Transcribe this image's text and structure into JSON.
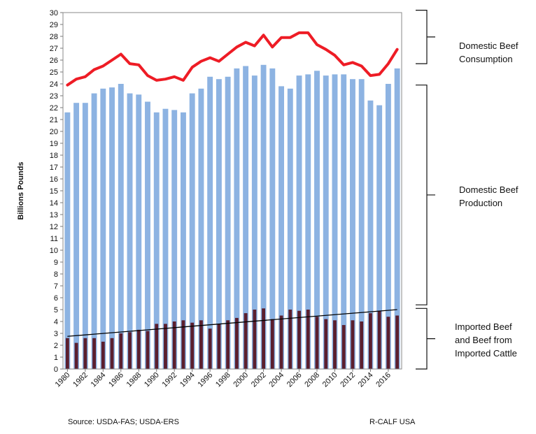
{
  "chart_data": {
    "type": "bar",
    "ylabel": "Billions Pounds",
    "ylim": [
      0,
      30
    ],
    "yticks": [
      0,
      1,
      2,
      3,
      4,
      5,
      6,
      7,
      8,
      9,
      10,
      11,
      12,
      13,
      14,
      15,
      16,
      17,
      18,
      19,
      20,
      21,
      22,
      23,
      24,
      25,
      26,
      27,
      28,
      29,
      30
    ],
    "categories": [
      1980,
      1981,
      1982,
      1983,
      1984,
      1985,
      1986,
      1987,
      1988,
      1989,
      1990,
      1991,
      1992,
      1993,
      1994,
      1995,
      1996,
      1997,
      1998,
      1999,
      2000,
      2001,
      2002,
      2003,
      2004,
      2005,
      2006,
      2007,
      2008,
      2009,
      2010,
      2011,
      2012,
      2013,
      2014,
      2015,
      2016,
      2017
    ],
    "xtick_labels": [
      "1980",
      "1982",
      "1984",
      "1986",
      "1988",
      "1990",
      "1992",
      "1994",
      "1996",
      "1998",
      "2000",
      "2002",
      "2004",
      "2006",
      "2008",
      "2010",
      "2012",
      "2014",
      "2016"
    ],
    "series": [
      {
        "values": [
          21.6,
          22.4,
          22.4,
          23.2,
          23.6,
          23.7,
          24.0,
          23.2,
          23.1,
          22.5,
          21.6,
          21.9,
          21.8,
          21.6,
          23.2,
          23.6,
          24.6,
          24.4,
          24.6,
          25.3,
          25.5,
          24.7,
          25.6,
          25.3,
          23.8,
          23.6,
          24.7,
          24.8,
          25.1,
          24.7,
          24.8,
          24.8,
          24.4,
          24.4,
          22.6,
          22.2,
          24.0,
          25.3
        ]
      },
      {
        "values": [
          2.6,
          2.2,
          2.6,
          2.6,
          2.3,
          2.6,
          3.0,
          3.1,
          3.3,
          3.2,
          3.8,
          3.8,
          4.0,
          4.1,
          3.9,
          4.1,
          3.4,
          3.8,
          4.1,
          4.3,
          4.7,
          5.0,
          5.1,
          4.2,
          4.5,
          5.0,
          4.9,
          5.0,
          4.4,
          4.2,
          4.1,
          3.7,
          4.1,
          4.0,
          4.7,
          4.9,
          4.4,
          4.5
        ]
      },
      {
        "type": "line",
        "values": [
          23.9,
          24.4,
          24.6,
          25.2,
          25.5,
          26.0,
          26.5,
          25.7,
          25.6,
          24.7,
          24.3,
          24.4,
          24.6,
          24.3,
          25.4,
          25.9,
          26.2,
          25.9,
          26.5,
          27.1,
          27.5,
          27.2,
          28.1,
          27.1,
          27.9,
          27.9,
          28.3,
          28.3,
          27.3,
          26.9,
          26.4,
          25.6,
          25.8,
          25.5,
          24.7,
          24.8,
          25.7,
          26.9
        ]
      },
      {
        "type": "trendline",
        "start_value": 2.75,
        "end_value": 5.0
      }
    ],
    "annotations": [
      {
        "lines": [
          "Domestic Beef",
          "Consumption"
        ]
      },
      {
        "lines": [
          "Domestic Beef",
          "Production"
        ]
      },
      {
        "lines": [
          "Imported Beef",
          "and Beef from",
          "Imported Cattle"
        ]
      }
    ],
    "colors": {
      "production": "#8db3e2",
      "imports": "#5b1f2e",
      "consumption": "#ee1c25",
      "trend": "#000000"
    }
  },
  "footer": {
    "source": "Source: USDA-FAS; USDA-ERS",
    "credit": "R-CALF USA"
  }
}
